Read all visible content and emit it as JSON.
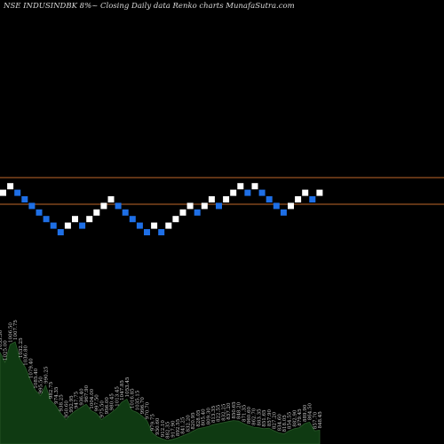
{
  "title": "NSE INDUSINDBK 8%~  Closing Daily data  Renko  charts MunafaSutra.com",
  "colors": {
    "background": "#000000",
    "up_brick": "#ffffff",
    "down_brick": "#1e6fe6",
    "reference_line": "#c0672a",
    "volume_fill": "#0f3a12",
    "volume_stroke": "#2a5a2a"
  },
  "chart_data": [
    {
      "type": "renko",
      "reference_lines": [
        "upper",
        "lower"
      ],
      "bricks": [
        {
          "dir": "up",
          "level": 1
        },
        {
          "dir": "up",
          "level": 2
        },
        {
          "dir": "down",
          "level": 1
        },
        {
          "dir": "down",
          "level": 0
        },
        {
          "dir": "down",
          "level": -1
        },
        {
          "dir": "down",
          "level": -2
        },
        {
          "dir": "down",
          "level": -3
        },
        {
          "dir": "down",
          "level": -4
        },
        {
          "dir": "down",
          "level": -5
        },
        {
          "dir": "up",
          "level": -4
        },
        {
          "dir": "up",
          "level": -3
        },
        {
          "dir": "down",
          "level": -4
        },
        {
          "dir": "up",
          "level": -3
        },
        {
          "dir": "up",
          "level": -2
        },
        {
          "dir": "up",
          "level": -1
        },
        {
          "dir": "up",
          "level": 0
        },
        {
          "dir": "down",
          "level": -1
        },
        {
          "dir": "down",
          "level": -2
        },
        {
          "dir": "down",
          "level": -3
        },
        {
          "dir": "down",
          "level": -4
        },
        {
          "dir": "down",
          "level": -5
        },
        {
          "dir": "up",
          "level": -4
        },
        {
          "dir": "down",
          "level": -5
        },
        {
          "dir": "up",
          "level": -4
        },
        {
          "dir": "up",
          "level": -3
        },
        {
          "dir": "up",
          "level": -2
        },
        {
          "dir": "up",
          "level": -1
        },
        {
          "dir": "down",
          "level": -2
        },
        {
          "dir": "up",
          "level": -1
        },
        {
          "dir": "up",
          "level": 0
        },
        {
          "dir": "down",
          "level": -1
        },
        {
          "dir": "up",
          "level": 0
        },
        {
          "dir": "up",
          "level": 1
        },
        {
          "dir": "up",
          "level": 2
        },
        {
          "dir": "down",
          "level": 1
        },
        {
          "dir": "up",
          "level": 2
        },
        {
          "dir": "down",
          "level": 1
        },
        {
          "dir": "down",
          "level": 0
        },
        {
          "dir": "down",
          "level": -1
        },
        {
          "dir": "down",
          "level": -2
        },
        {
          "dir": "up",
          "level": -1
        },
        {
          "dir": "up",
          "level": 0
        },
        {
          "dir": "up",
          "level": 1
        },
        {
          "dir": "down",
          "level": 0
        },
        {
          "dir": "up",
          "level": 1
        }
      ]
    },
    {
      "type": "area",
      "name": "volume",
      "values": [
        180,
        160,
        195,
        200,
        165,
        150,
        125,
        105,
        95,
        115,
        85,
        75,
        60,
        48,
        58,
        66,
        72,
        78,
        65,
        60,
        48,
        55,
        62,
        70,
        82,
        88,
        66,
        62,
        55,
        45,
        22,
        14,
        10,
        7,
        9,
        12,
        16,
        20,
        25,
        30,
        32,
        34,
        38,
        40,
        42,
        44,
        46,
        45,
        40,
        36,
        33,
        32,
        30,
        31,
        26,
        22,
        20,
        26,
        30,
        32,
        40,
        43,
        26,
        27
      ],
      "labels": [
        "1033.30",
        "1025.00",
        "1006.50",
        "1007.75",
        "1032.25",
        "1036.80",
        "1079.40",
        "1085.40",
        "995.50",
        "990.25",
        "982.75",
        "974.35",
        "938.25",
        "950.60",
        "952.95",
        "947.75",
        "936.40",
        "967.90",
        "1004.00",
        "997.50",
        "975.50",
        "956.00",
        "980.45",
        "1013.45",
        "1047.85",
        "1053.45",
        "1016.85",
        "1035.15",
        "996.70",
        "970.70",
        "979.75",
        "930.60",
        "912.10",
        "882.35",
        "917.90",
        "892.55",
        "841.25",
        "832.20",
        "820.95",
        "828.05",
        "805.40",
        "809.30",
        "813.35",
        "822.55",
        "832.25",
        "837.20",
        "850.65",
        "848.20",
        "871.35",
        "860.60",
        "862.70",
        "883.35",
        "851.65",
        "857.90",
        "827.20",
        "834.60",
        "818.05",
        "854.55",
        "882.90",
        "879.45",
        "889.90",
        "864.50",
        "857.70",
        "848.45"
      ]
    }
  ]
}
